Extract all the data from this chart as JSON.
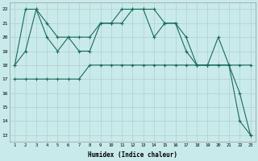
{
  "xlabel": "Humidex (Indice chaleur)",
  "x": [
    1,
    2,
    3,
    4,
    5,
    6,
    7,
    8,
    9,
    10,
    11,
    12,
    13,
    14,
    15,
    16,
    17,
    18,
    19,
    20,
    21,
    22,
    23
  ],
  "line1": [
    18,
    22,
    22,
    21,
    20,
    20,
    19,
    19,
    21,
    21,
    22,
    22,
    22,
    20,
    21,
    21,
    19,
    18,
    18,
    20,
    18,
    16,
    13
  ],
  "line2": [
    18,
    19,
    22,
    20,
    19,
    20,
    20,
    20,
    21,
    21,
    21,
    22,
    22,
    22,
    21,
    21,
    20,
    18,
    18,
    18,
    18,
    14,
    13
  ],
  "line3": [
    17,
    17,
    17,
    17,
    17,
    17,
    17,
    18,
    18,
    18,
    18,
    18,
    18,
    18,
    18,
    18,
    18,
    18,
    18,
    18,
    18,
    18,
    18
  ],
  "line_color": "#1a6b5a",
  "bg_color": "#c8eaea",
  "grid_major_color": "#b0d0d0",
  "grid_minor_color": "#d8ecec",
  "ylim": [
    12.5,
    22.5
  ],
  "yticks": [
    13,
    14,
    15,
    16,
    17,
    18,
    19,
    20,
    21,
    22
  ],
  "xlim": [
    0.5,
    23.5
  ]
}
